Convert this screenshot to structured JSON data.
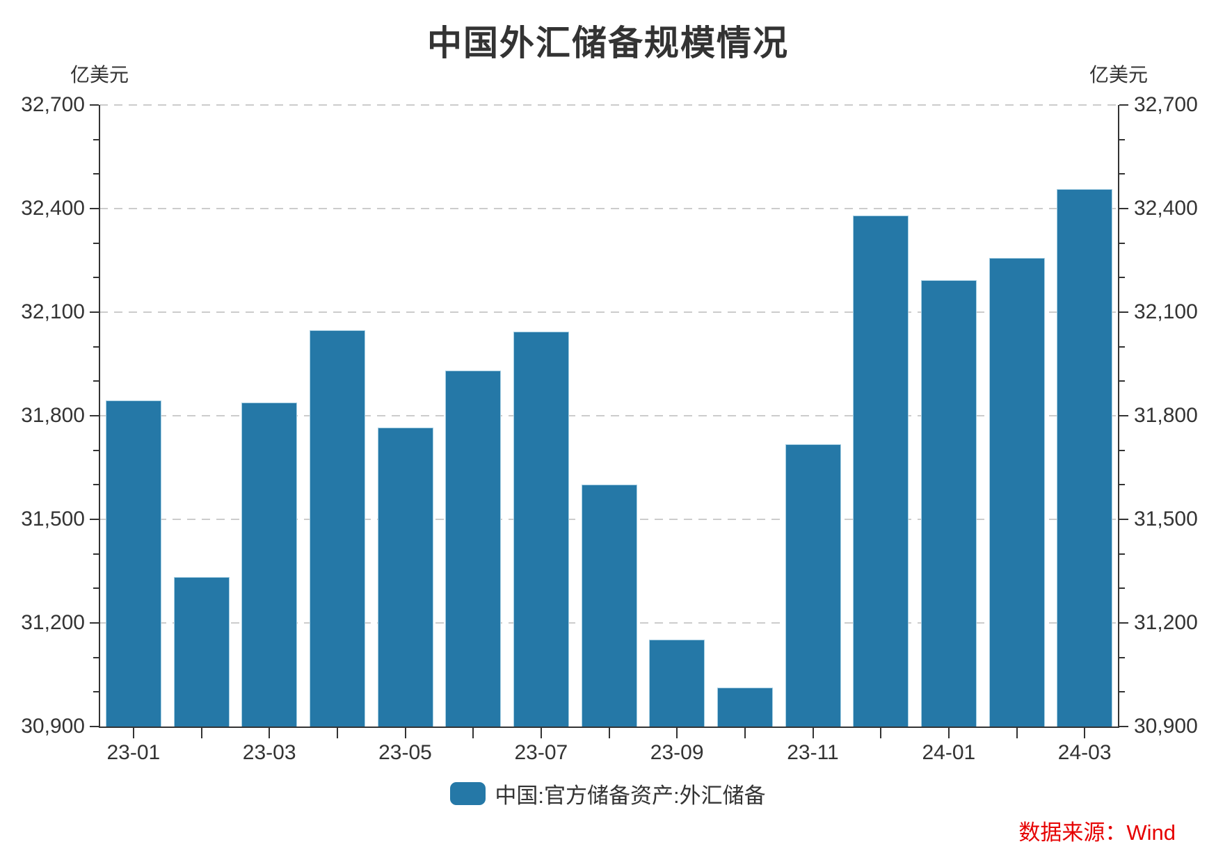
{
  "title": "中国外汇储备规模情况",
  "y_axis": {
    "unit_left": "亿美元",
    "unit_right": "亿美元",
    "tick_labels": [
      "32,700",
      "32,400",
      "32,100",
      "31,800",
      "31,500",
      "31,200",
      "30,900"
    ]
  },
  "x_axis": {
    "labels": [
      "23-01",
      "23-03",
      "23-05",
      "23-07",
      "23-09",
      "23-11",
      "24-01",
      "24-03"
    ]
  },
  "legend": {
    "series_label": "中国:官方储备资产:外汇储备"
  },
  "source_note": "数据来源：Wind",
  "colors": {
    "bar": "#2578a7",
    "bar_edge": "#a6cfe3",
    "axis": "#333333",
    "grid": "#cccccc",
    "text": "#333333",
    "source": "#e60000"
  },
  "chart_data": {
    "type": "bar",
    "title": "中国外汇储备规模情况",
    "ylabel": "亿美元",
    "categories": [
      "23-01",
      "23-02",
      "23-03",
      "23-04",
      "23-05",
      "23-06",
      "23-07",
      "23-08",
      "23-09",
      "23-10",
      "23-11",
      "23-12",
      "24-01",
      "24-02",
      "24-03"
    ],
    "series": [
      {
        "name": "中国:官方储备资产:外汇储备",
        "values": [
          31845,
          31332,
          31839,
          32048,
          31765,
          31930,
          32043,
          31601,
          31151,
          31012,
          31718,
          32380,
          32193,
          32258,
          32457
        ]
      }
    ],
    "ylim": [
      30900,
      32700
    ],
    "y_major_step": 300,
    "y_minor_step": 100,
    "x_label_every": 2,
    "grid": "horizontal dashed at major ticks",
    "legend_position": "bottom"
  }
}
